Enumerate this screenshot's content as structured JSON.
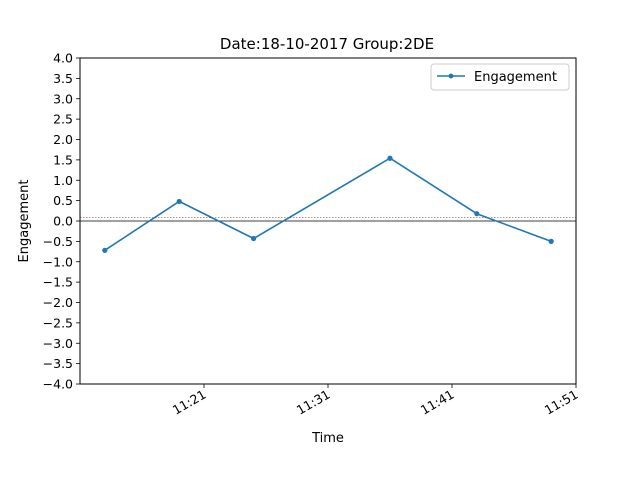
{
  "chart_data": {
    "type": "line",
    "title": "Date:18-10-2017 Group:2DE",
    "xlabel": "Time",
    "ylabel": "Engagement",
    "x": [
      "11:13",
      "11:19",
      "11:25",
      "11:36",
      "11:43",
      "11:49"
    ],
    "series": [
      {
        "name": "Engagement",
        "values": [
          -0.72,
          0.48,
          -0.43,
          1.54,
          0.18,
          -0.5
        ]
      }
    ],
    "xlim": [
      "11:11",
      "11:51"
    ],
    "ylim": [
      -4.0,
      4.0
    ],
    "y_ticks": [
      "4.0",
      "3.5",
      "3.0",
      "2.5",
      "2.0",
      "1.5",
      "1.0",
      "0.5",
      "0.0",
      "−0.5",
      "−1.0",
      "−1.5",
      "−2.0",
      "−2.5",
      "−3.0",
      "−3.5",
      "−4.0"
    ],
    "x_ticks": [
      "11:21",
      "11:31",
      "11:41",
      "11:51"
    ],
    "reference_lines": [
      0.0,
      0.08
    ],
    "grid": false,
    "legend_position": "top-right",
    "colors": {
      "series": "#1f77b4",
      "zero_line": "#000000",
      "ref_line": "#7f1f1f"
    }
  }
}
